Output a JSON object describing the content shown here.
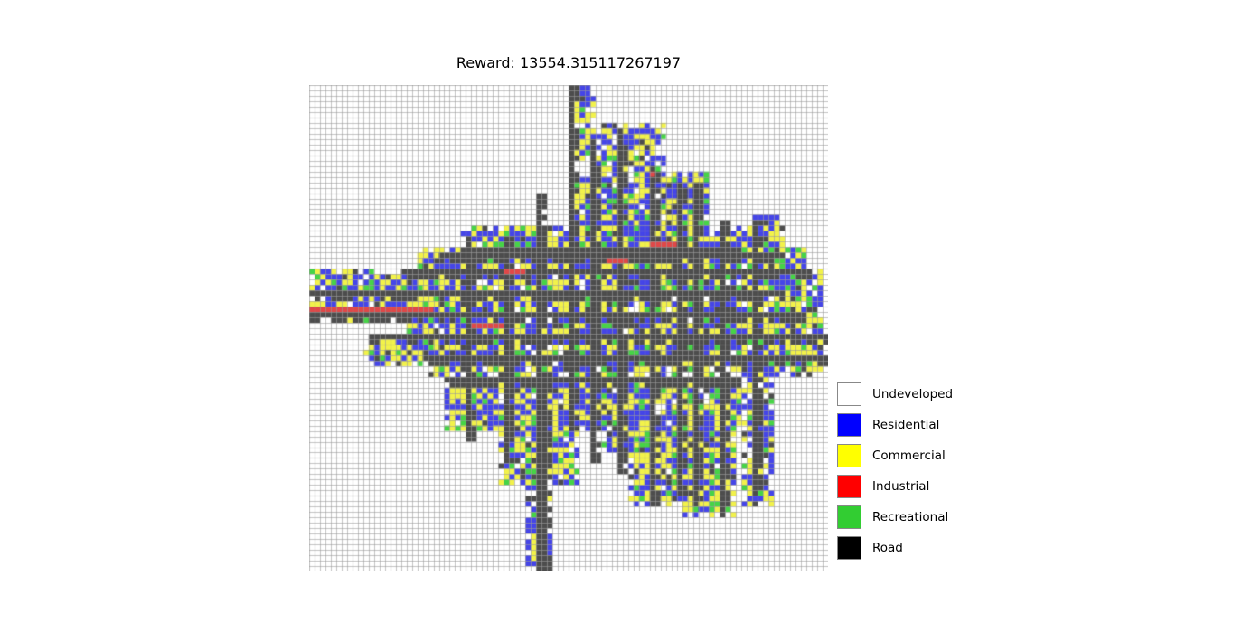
{
  "chart_data": {
    "type": "heatmap",
    "title": "Reward: 13554.315117267197",
    "xlabel": "",
    "ylabel": "",
    "grid": true,
    "legend_position": "right",
    "grid_size": {
      "columns": 96,
      "rows": 90
    },
    "categories": [
      {
        "name": "Undeveloped",
        "color": "#ffffff"
      },
      {
        "name": "Residential",
        "color": "#0000ff"
      },
      {
        "name": "Commercial",
        "color": "#ffff00"
      },
      {
        "name": "Industrial",
        "color": "#ff0000"
      },
      {
        "name": "Recreational",
        "color": "#32cd32"
      },
      {
        "name": "Road",
        "color": "#000000"
      }
    ],
    "roads": {
      "horizontal": [
        {
          "row": 31,
          "from": 24,
          "to": 88
        },
        {
          "row": 34,
          "from": 17,
          "to": 93
        },
        {
          "row": 38,
          "from": 0,
          "to": 88
        },
        {
          "row": 42,
          "from": 0,
          "to": 92
        },
        {
          "row": 46,
          "from": 11,
          "to": 96
        },
        {
          "row": 50,
          "from": 22,
          "to": 96
        },
        {
          "row": 54,
          "from": 25,
          "to": 80
        },
        {
          "row": 30,
          "from": 29,
          "to": 80
        }
      ],
      "vertical": [
        {
          "col": 48,
          "from": 0,
          "to": 64
        },
        {
          "col": 57,
          "from": 8,
          "to": 72
        },
        {
          "col": 63,
          "from": 15,
          "to": 78
        },
        {
          "col": 71,
          "from": 18,
          "to": 78
        },
        {
          "col": 82,
          "from": 25,
          "to": 76
        },
        {
          "col": 36,
          "from": 28,
          "to": 70
        },
        {
          "col": 42,
          "from": 20,
          "to": 90
        },
        {
          "col": 43,
          "from": 55,
          "to": 90
        },
        {
          "col": 52,
          "from": 10,
          "to": 70
        },
        {
          "col": 68,
          "from": 18,
          "to": 76
        },
        {
          "col": 76,
          "from": 25,
          "to": 80
        },
        {
          "col": 29,
          "from": 30,
          "to": 66
        }
      ]
    },
    "development_blobs": [
      {
        "col": 48,
        "row": 0,
        "w": 5,
        "h": 14
      },
      {
        "col": 53,
        "row": 7,
        "w": 13,
        "h": 10
      },
      {
        "col": 48,
        "row": 16,
        "w": 26,
        "h": 14
      },
      {
        "col": 65,
        "row": 16,
        "w": 9,
        "h": 14
      },
      {
        "col": 28,
        "row": 26,
        "w": 60,
        "h": 6
      },
      {
        "col": 20,
        "row": 30,
        "w": 72,
        "h": 5
      },
      {
        "col": 0,
        "row": 34,
        "w": 30,
        "h": 10
      },
      {
        "col": 17,
        "row": 34,
        "w": 78,
        "h": 14
      },
      {
        "col": 10,
        "row": 46,
        "w": 86,
        "h": 6
      },
      {
        "col": 22,
        "row": 50,
        "w": 74,
        "h": 4
      },
      {
        "col": 25,
        "row": 54,
        "w": 55,
        "h": 10
      },
      {
        "col": 35,
        "row": 62,
        "w": 15,
        "h": 12
      },
      {
        "col": 40,
        "row": 70,
        "w": 5,
        "h": 20
      },
      {
        "col": 54,
        "row": 62,
        "w": 10,
        "h": 6
      },
      {
        "col": 59,
        "row": 62,
        "w": 17,
        "h": 16
      },
      {
        "col": 69,
        "row": 62,
        "w": 10,
        "h": 18
      },
      {
        "col": 81,
        "row": 24,
        "w": 7,
        "h": 8
      },
      {
        "col": 80,
        "row": 54,
        "w": 6,
        "h": 24
      }
    ],
    "industrial_segments": [
      {
        "row": 41,
        "from": 0,
        "to": 23
      },
      {
        "row": 44,
        "from": 30,
        "to": 36
      },
      {
        "row": 32,
        "from": 55,
        "to": 59
      },
      {
        "row": 16,
        "from": 63,
        "to": 64
      },
      {
        "row": 29,
        "from": 63,
        "to": 68
      },
      {
        "row": 34,
        "from": 36,
        "to": 40
      }
    ],
    "composition_estimate": {
      "Residential": 0.22,
      "Commercial": 0.2,
      "Industrial": 0.02,
      "Recreational": 0.08,
      "Road": 0.48
    }
  },
  "legend": {
    "items": [
      {
        "label": "Undeveloped",
        "color": "#ffffff"
      },
      {
        "label": "Residential",
        "color": "#0000ff"
      },
      {
        "label": "Commercial",
        "color": "#ffff00"
      },
      {
        "label": "Industrial",
        "color": "#ff0000"
      },
      {
        "label": "Recreational",
        "color": "#32cd32"
      },
      {
        "label": "Road",
        "color": "#000000"
      }
    ]
  }
}
